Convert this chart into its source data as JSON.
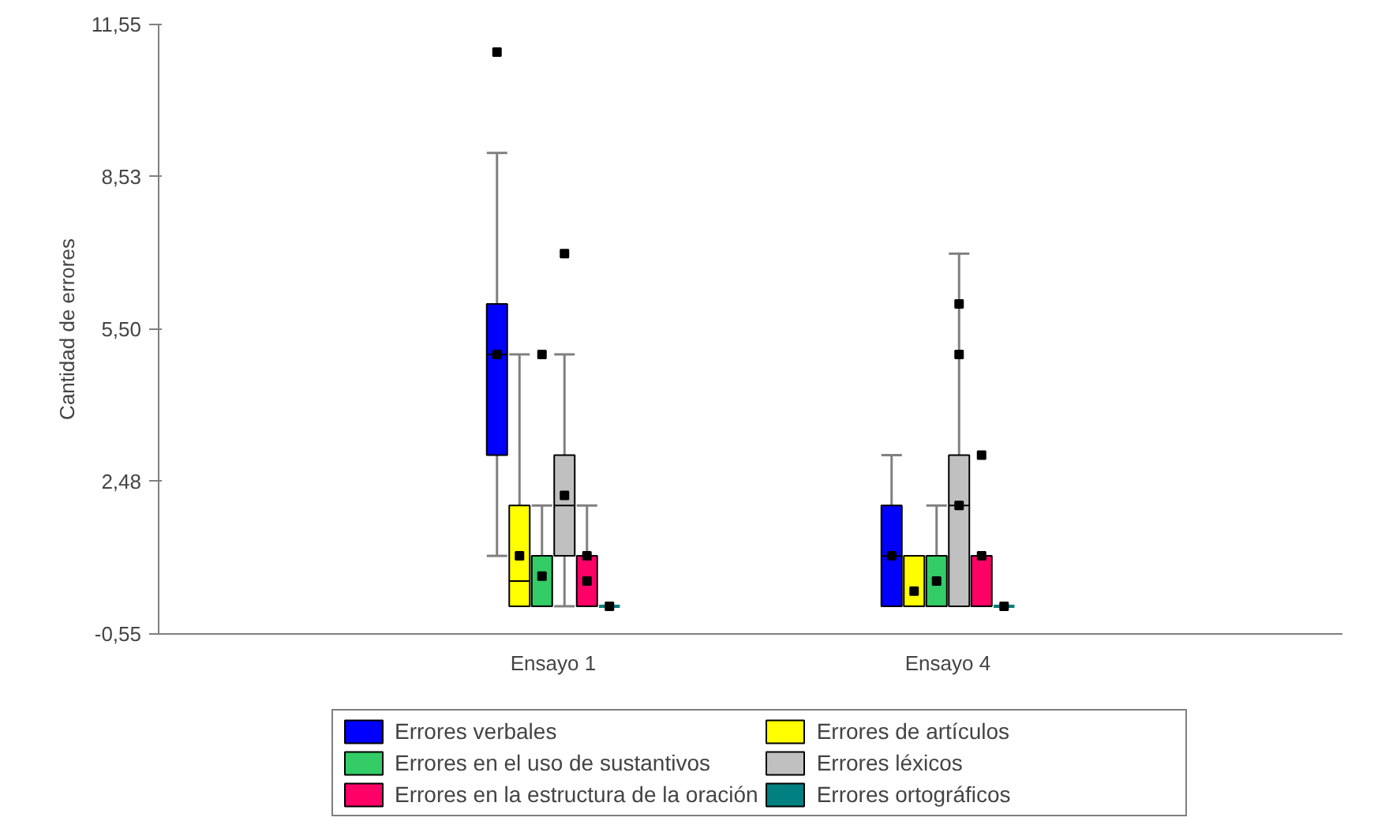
{
  "chart_data": {
    "type": "box",
    "ylabel": "Cantidad de errores",
    "categories": [
      "Ensayo 1",
      "Ensayo 4"
    ],
    "ylim": [
      -0.55,
      11.55
    ],
    "yticks": [
      {
        "value": -0.55,
        "label": "-0,55"
      },
      {
        "value": 2.48,
        "label": "2,48"
      },
      {
        "value": 5.5,
        "label": "5,50"
      },
      {
        "value": 8.53,
        "label": "8,53"
      },
      {
        "value": 11.55,
        "label": "11,55"
      }
    ],
    "grid": false,
    "legend": "bottom",
    "series": [
      {
        "name": "Errores verbales",
        "color": "#0000ff",
        "boxes": [
          {
            "low": 1,
            "q1": 3,
            "median": 5,
            "q3": 6,
            "high": 9,
            "mean": 5,
            "outliers": [
              11
            ]
          },
          {
            "low": 0,
            "q1": 0,
            "median": 1,
            "q3": 2,
            "high": 3,
            "mean": 1
          }
        ]
      },
      {
        "name": "Errores de artículos",
        "color": "#ffff00",
        "boxes": [
          {
            "low": 0,
            "q1": 0,
            "median": 0.5,
            "q3": 2,
            "high": 5,
            "mean": 1
          },
          {
            "low": 0,
            "q1": 0,
            "median": 0,
            "q3": 1,
            "high": 1,
            "mean": 0.3
          }
        ]
      },
      {
        "name": "Errores en el uso de sustantivos",
        "color": "#33cc66",
        "boxes": [
          {
            "low": 0,
            "q1": 0,
            "median": 0,
            "q3": 1,
            "high": 2,
            "mean": 0.6,
            "outliers": [
              5
            ]
          },
          {
            "low": 0,
            "q1": 0,
            "median": 0,
            "q3": 1,
            "high": 2,
            "mean": 0.5
          }
        ]
      },
      {
        "name": "Errores léxicos",
        "color": "#c0c0c0",
        "boxes": [
          {
            "low": 0,
            "q1": 1,
            "median": 2,
            "q3": 3,
            "high": 5,
            "mean": 2.2,
            "outliers": [
              7
            ]
          },
          {
            "low": 0,
            "q1": 0,
            "median": 2,
            "q3": 3,
            "high": 7,
            "mean": 2,
            "outliers": [
              5,
              6
            ]
          }
        ]
      },
      {
        "name": "Errores en la estructura de la oración",
        "color": "#ff0066",
        "boxes": [
          {
            "low": 0,
            "q1": 0,
            "median": 0,
            "q3": 1,
            "high": 2,
            "mean": 0.5,
            "outliers": [
              1
            ]
          },
          {
            "low": 0,
            "q1": 0,
            "median": 0,
            "q3": 1,
            "high": 1,
            "mean": 1,
            "outliers": [
              3
            ]
          }
        ]
      },
      {
        "name": "Errores ortográficos",
        "color": "#008080",
        "boxes": [
          {
            "low": 0,
            "q1": 0,
            "median": 0,
            "q3": 0,
            "high": 0,
            "mean": 0
          },
          {
            "low": 0,
            "q1": 0,
            "median": 0,
            "q3": 0,
            "high": 0,
            "mean": 0
          }
        ]
      }
    ]
  }
}
